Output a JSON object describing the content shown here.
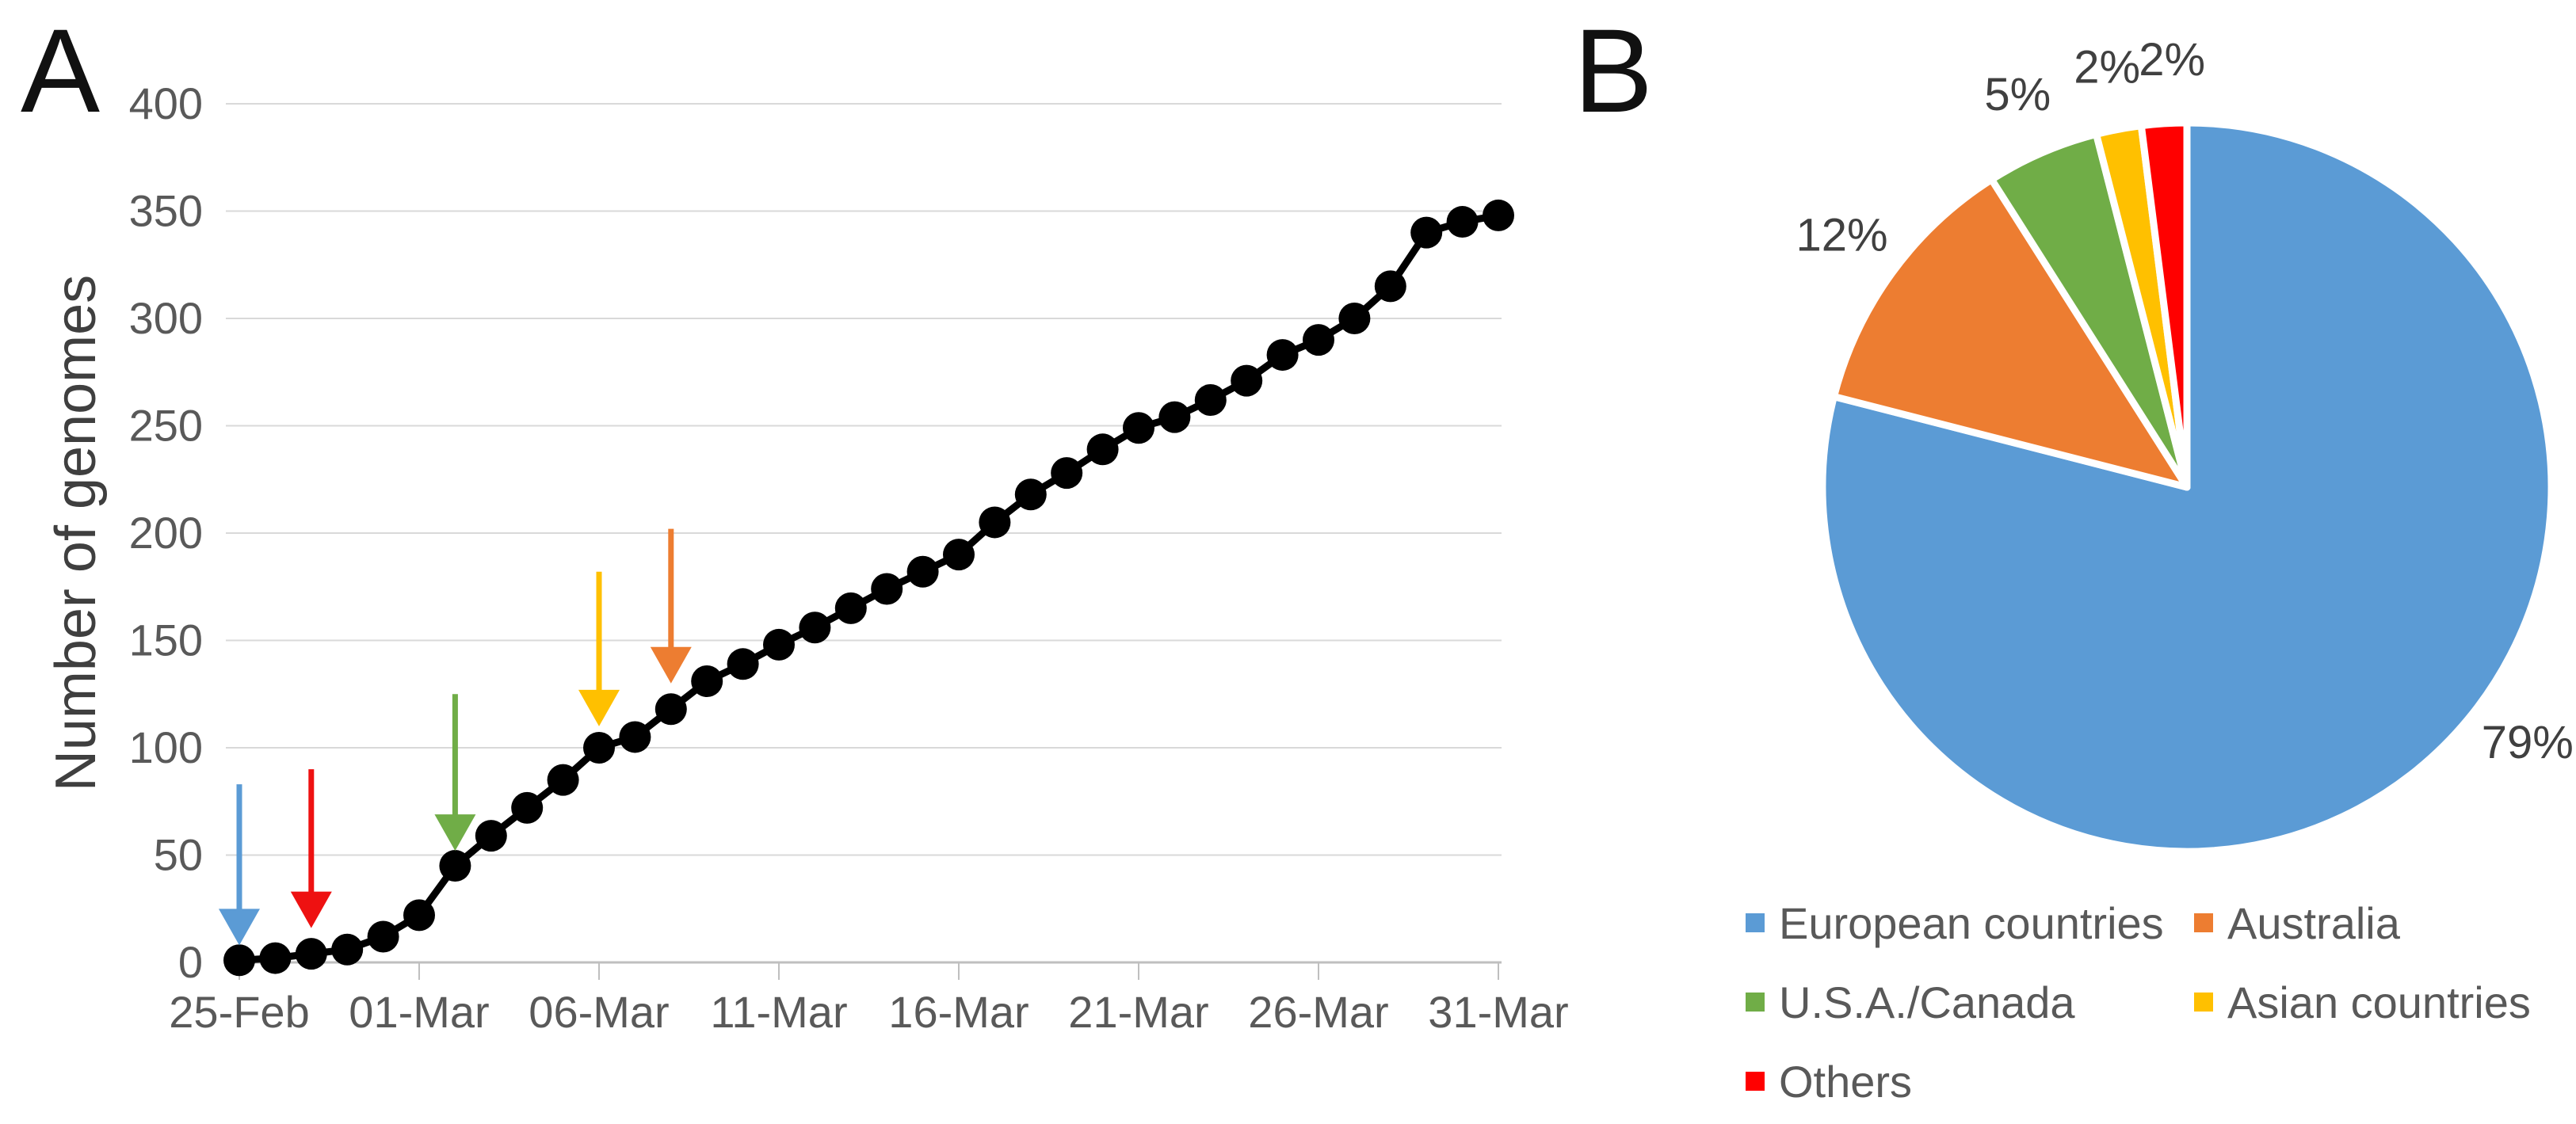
{
  "panelA": {
    "label": "A",
    "y_axis_title": "Number of genomes"
  },
  "panelB": {
    "label": "B"
  },
  "chart_data": [
    {
      "type": "line",
      "panel": "A",
      "title": "",
      "xlabel": "",
      "ylabel": "Number of genomes",
      "ylim": [
        0,
        400
      ],
      "y_ticks": [
        0,
        50,
        100,
        150,
        200,
        250,
        300,
        350,
        400
      ],
      "x_tick_labels": [
        "25-Feb",
        "01-Mar",
        "06-Mar",
        "11-Mar",
        "16-Mar",
        "21-Mar",
        "26-Mar",
        "31-Mar"
      ],
      "grid": true,
      "line_color": "#000000",
      "marker": "filled-circle",
      "x": [
        "25-Feb",
        "26-Feb",
        "27-Feb",
        "28-Feb",
        "29-Feb",
        "01-Mar",
        "02-Mar",
        "03-Mar",
        "04-Mar",
        "05-Mar",
        "06-Mar",
        "07-Mar",
        "08-Mar",
        "09-Mar",
        "10-Mar",
        "11-Mar",
        "12-Mar",
        "13-Mar",
        "14-Mar",
        "15-Mar",
        "16-Mar",
        "17-Mar",
        "18-Mar",
        "19-Mar",
        "20-Mar",
        "21-Mar",
        "22-Mar",
        "23-Mar",
        "24-Mar",
        "25-Mar",
        "26-Mar",
        "27-Mar",
        "28-Mar",
        "29-Mar",
        "30-Mar",
        "31-Mar"
      ],
      "values": [
        1,
        2,
        4,
        6,
        12,
        22,
        45,
        59,
        72,
        85,
        100,
        105,
        118,
        131,
        139,
        148,
        156,
        165,
        174,
        182,
        190,
        205,
        218,
        228,
        239,
        249,
        254,
        262,
        271,
        283,
        290,
        300,
        315,
        340,
        345,
        348
      ],
      "annotations": [
        {
          "name": "blue-arrow",
          "date": "25-Feb",
          "color": "#5B9BD5",
          "from_value": 83,
          "to_value": 8
        },
        {
          "name": "red-arrow",
          "date": "27-Feb",
          "color": "#EE1111",
          "from_value": 90,
          "to_value": 16
        },
        {
          "name": "green-arrow",
          "date": "02-Mar",
          "color": "#70AD47",
          "from_value": 125,
          "to_value": 52
        },
        {
          "name": "yellow-arrow",
          "date": "06-Mar",
          "color": "#FFC000",
          "from_value": 182,
          "to_value": 110
        },
        {
          "name": "orange-arrow",
          "date": "08-Mar",
          "color": "#ED7D31",
          "from_value": 202,
          "to_value": 130
        }
      ]
    },
    {
      "type": "pie",
      "panel": "B",
      "title": "",
      "labels": [
        "European countries",
        "Australia",
        "U.S.A./Canada",
        "Asian countries",
        "Others"
      ],
      "values": [
        79,
        12,
        5,
        2,
        2
      ],
      "percent_labels": [
        "79%",
        "12%",
        "5%",
        "2%",
        "2%"
      ],
      "colors": [
        "#5B9BD5",
        "#ED7D31",
        "#70AD47",
        "#FFC000",
        "#FF0000"
      ],
      "slice_border_color": "#FFFFFF",
      "start_angle": "12-o-clock-clockwise",
      "legend_position": "bottom"
    }
  ]
}
